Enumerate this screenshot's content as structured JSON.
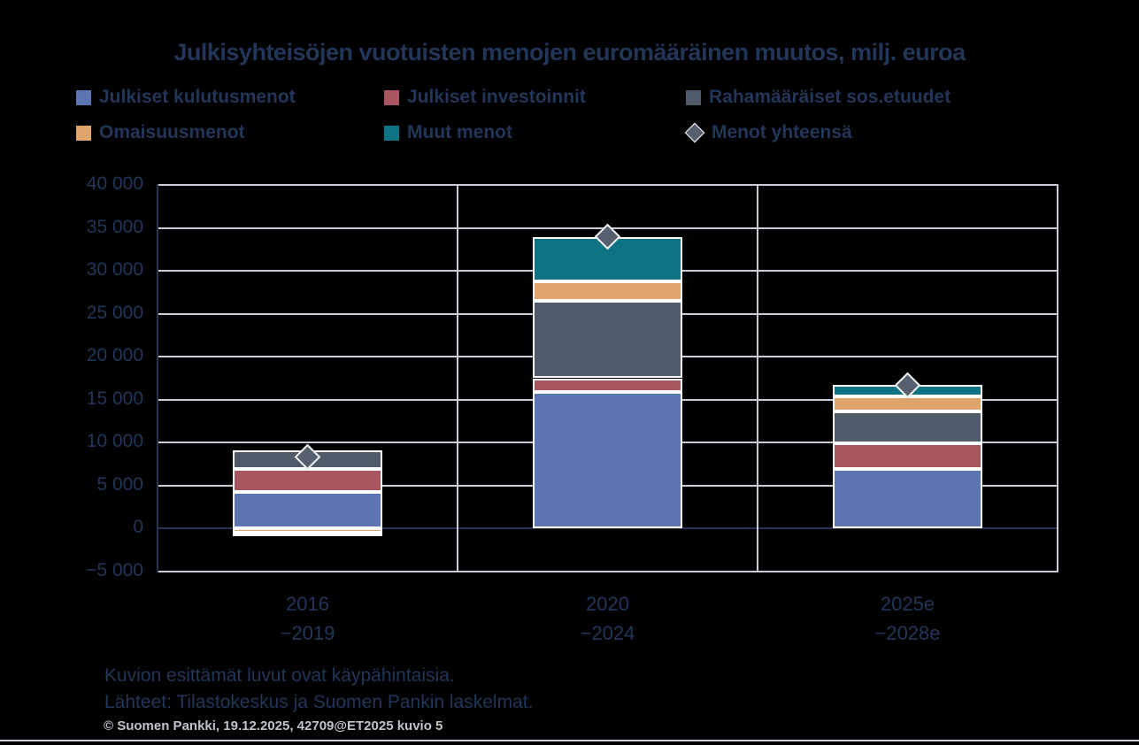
{
  "title": "Julkisyhteisöjen vuotuisten menojen euromääräinen muutos, milj. euroa",
  "notes": {
    "line1": "Kuvion esittämät luvut ovat käypähintaisia.",
    "line2": "Lähteet: Tilastokeskus ja Suomen Pankin laskelmat.",
    "copyright": "© Suomen Pankki, 19.12.2025, 42709@ET2025 kuvio 5"
  },
  "style": {
    "background": "#000000",
    "text_navy": "#223659",
    "grid_gray": "#C9CCD4",
    "axis_dark": "#233350",
    "bar_border": "#FFFFFF",
    "marker_fill": "#57606E",
    "footer_gray": "#BFC3CB"
  },
  "chart_data": {
    "type": "bar",
    "stacked": true,
    "title": "Julkisyhteisöjen vuotuisten menojen euromääräinen muutos, milj. euroa",
    "xlabel": "",
    "ylabel": "milj. euroa",
    "categories": [
      [
        "2016",
        "−2019"
      ],
      [
        "2020",
        "−2024"
      ],
      [
        "2025e",
        "−2028e"
      ]
    ],
    "series": [
      {
        "name": "Julkiset kulutusmenot",
        "color": "#5B74B2",
        "values": [
          4300,
          15900,
          6900
        ]
      },
      {
        "name": "Julkiset investoinnit",
        "color": "#A85560",
        "values": [
          2600,
          1600,
          3000
        ]
      },
      {
        "name": "Rahamääräiset sos.etuudet",
        "color": "#505B69",
        "values": [
          2200,
          9000,
          3700
        ]
      },
      {
        "name": "Omaisuusmenot",
        "color": "#DFA36C",
        "values": [
          -500,
          2250,
          1750
        ]
      },
      {
        "name": "Muut menot",
        "color": "#0E7383",
        "values": [
          -250,
          5200,
          1350
        ]
      }
    ],
    "total_series": {
      "name": "Menot yhteensä",
      "marker": "diamond",
      "values": [
        8350,
        34000,
        16700
      ]
    },
    "ylim": [
      -5000,
      40000
    ],
    "ytick_step": 5000,
    "ytick_labels": [
      "40 000",
      "35 000",
      "30 000",
      "25 000",
      "20 000",
      "15 000",
      "10 000",
      "5 000",
      "0",
      "−5 000"
    ],
    "grid": true,
    "legend_position": "top"
  }
}
